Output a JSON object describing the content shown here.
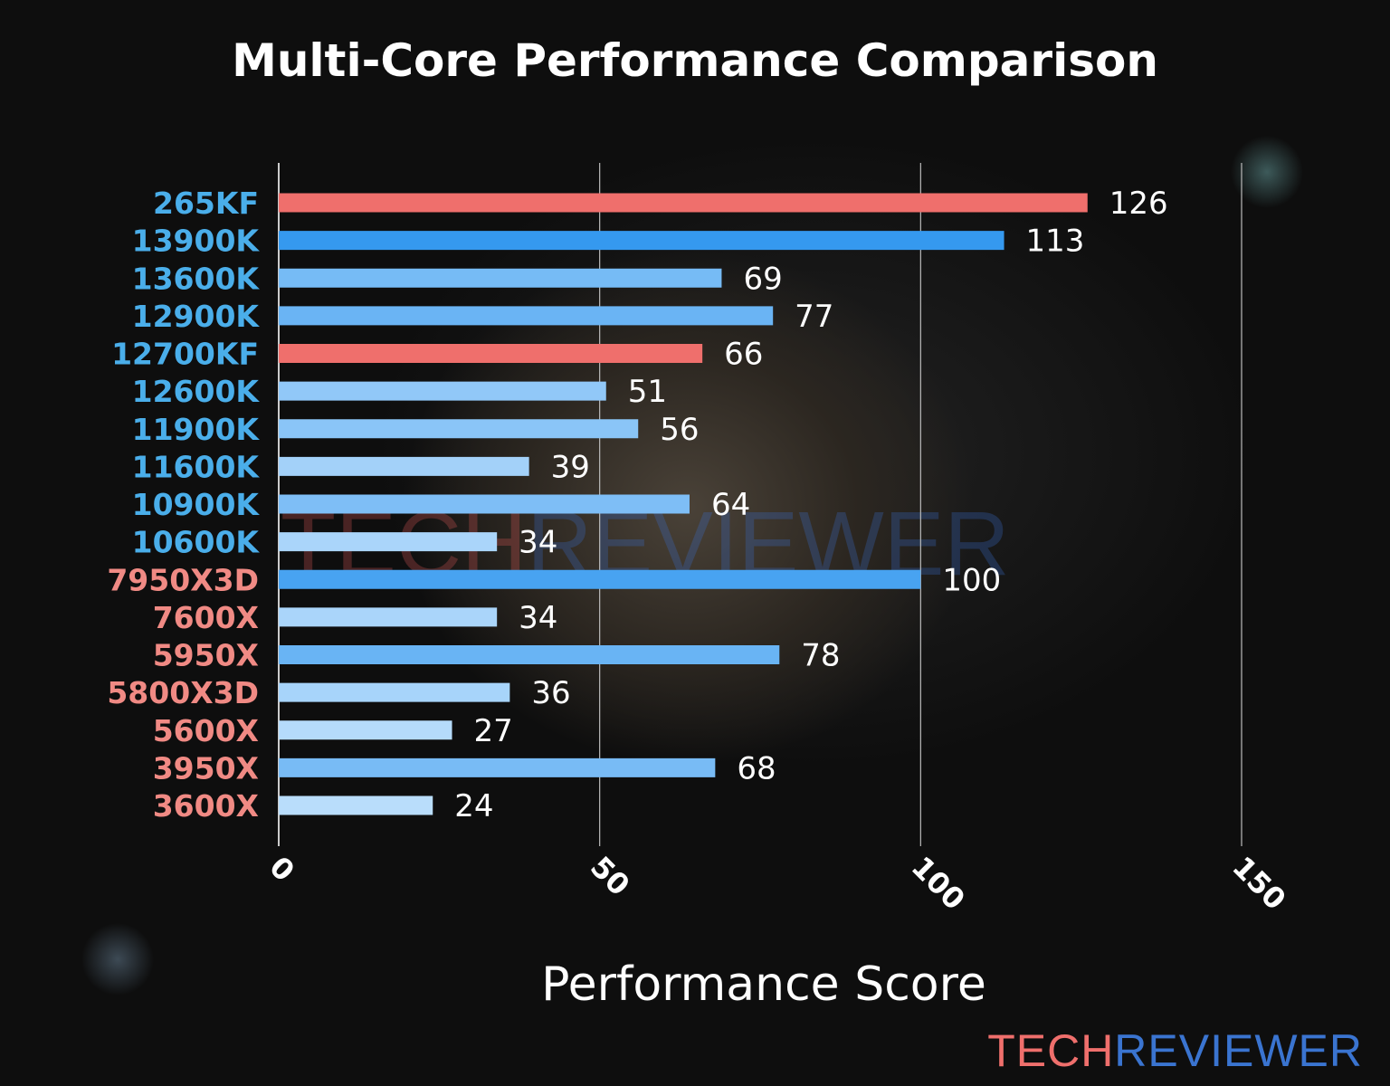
{
  "chart_data": {
    "type": "bar",
    "orientation": "horizontal",
    "title": "Multi-Core Performance Comparison",
    "xlabel": "Performance Score",
    "ylabel": "",
    "xlim": [
      0,
      150
    ],
    "xticks": [
      0,
      50,
      100,
      150
    ],
    "grid": "vertical",
    "categories": [
      "265KF",
      "13900K",
      "13600K",
      "12900K",
      "12700KF",
      "12600K",
      "11900K",
      "11600K",
      "10900K",
      "10600K",
      "7950X3D",
      "7600X",
      "5950X",
      "5800X3D",
      "5600X",
      "3950X",
      "3600X"
    ],
    "values": [
      126,
      113,
      69,
      77,
      66,
      51,
      56,
      39,
      64,
      34,
      100,
      34,
      78,
      36,
      27,
      68,
      24
    ],
    "highlighted": [
      "265KF",
      "12700KF"
    ],
    "brand": [
      "intel",
      "intel",
      "intel",
      "intel",
      "intel",
      "intel",
      "intel",
      "intel",
      "intel",
      "intel",
      "amd",
      "amd",
      "amd",
      "amd",
      "amd",
      "amd",
      "amd"
    ]
  },
  "colors": {
    "intel_label": "#4aaeea",
    "amd_label": "#f08a84",
    "highlight_bar": "#ef6f6c",
    "bar_high": "#3599ef",
    "bar_low": "#bfe0fc"
  },
  "watermark": {
    "part1": "TECH",
    "part2": "REVIEWER"
  }
}
